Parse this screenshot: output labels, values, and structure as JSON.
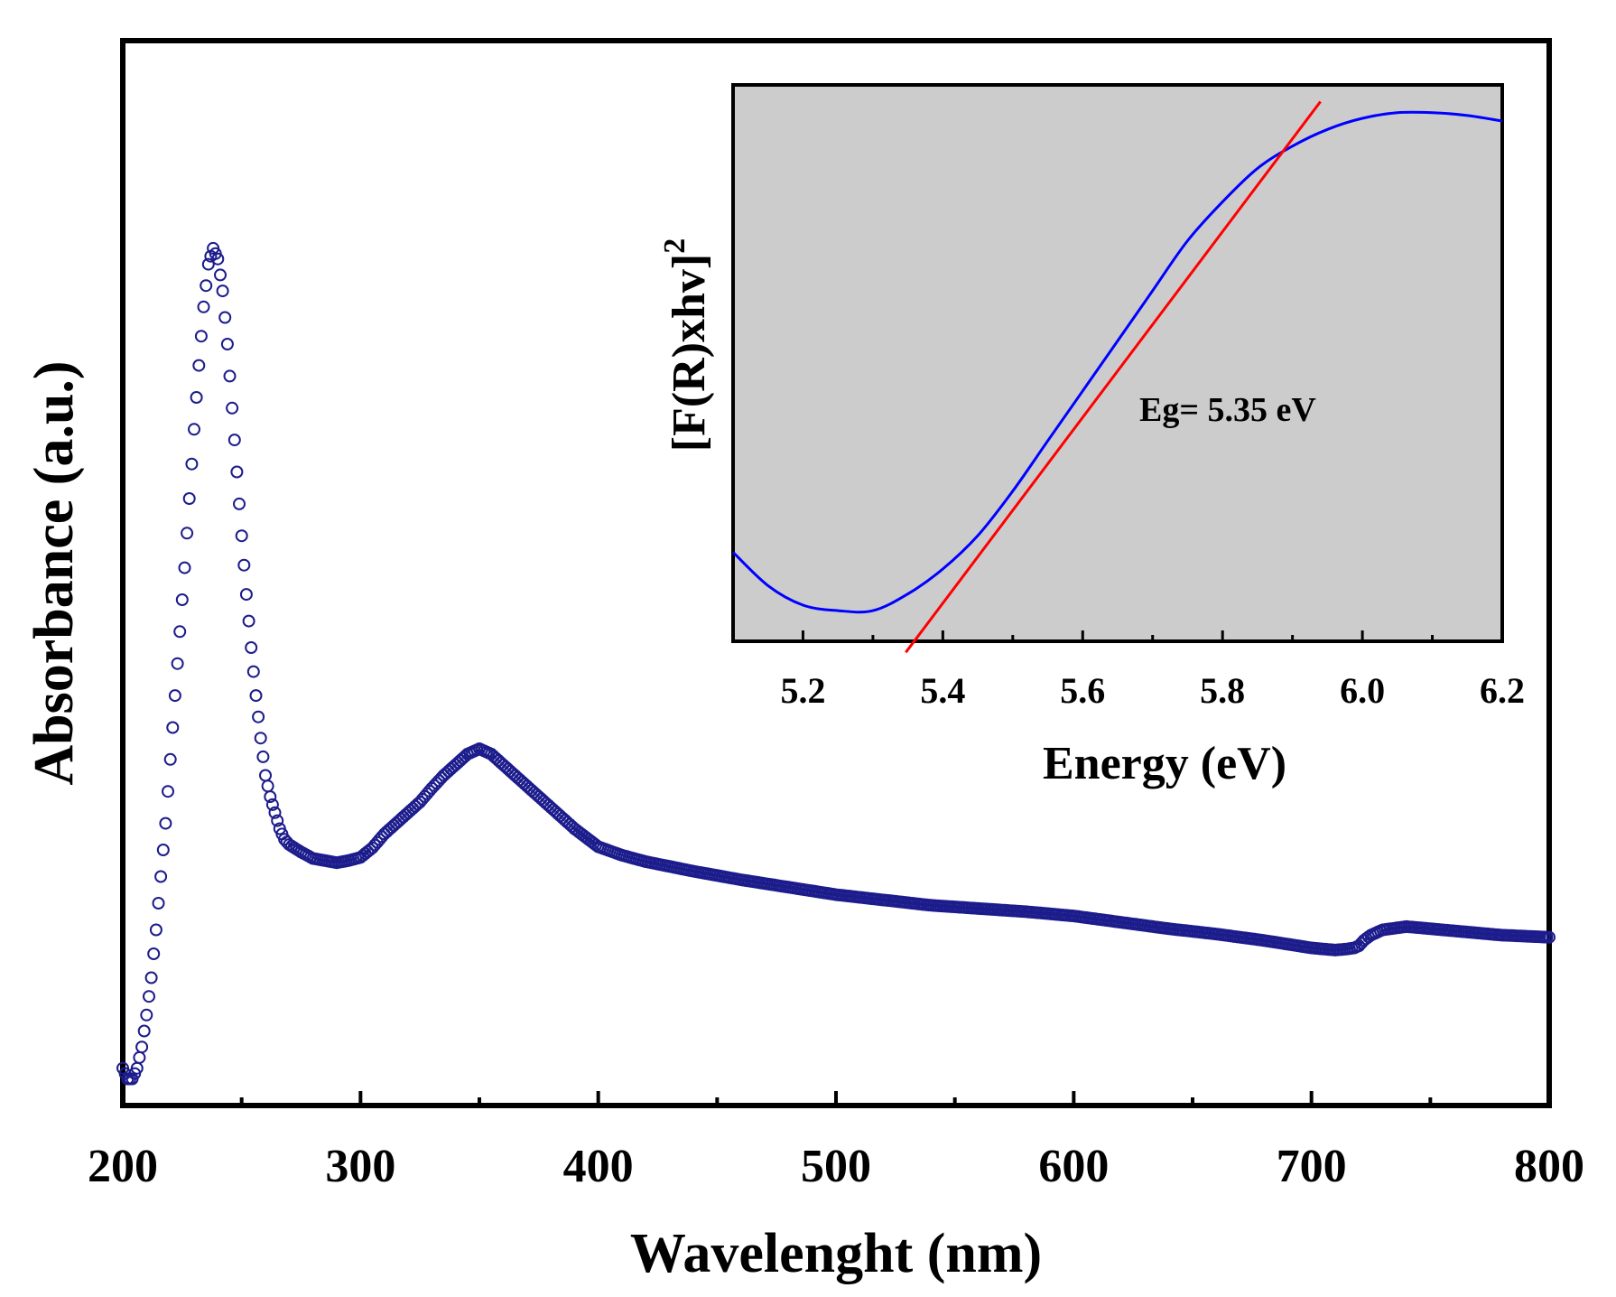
{
  "chart_data": [
    {
      "id": "main",
      "type": "scatter",
      "title": "",
      "xlabel": "Wavelenght (nm)",
      "ylabel": "Absorbance (a.u.)",
      "xlim": [
        200,
        800
      ],
      "ylim": [
        0,
        100
      ],
      "x_ticks": [
        200,
        300,
        400,
        500,
        600,
        700,
        800
      ],
      "x_tick_labels": [
        "200",
        "300",
        "400",
        "500",
        "600",
        "700",
        "800"
      ],
      "y_tick_labels": [],
      "marker": "open-circle",
      "colors": {
        "series": "#1c1c8c",
        "frame": "#000000"
      },
      "series": [
        {
          "name": "Absorbance",
          "x": [
            200,
            202,
            204,
            206,
            208,
            210,
            212,
            214,
            216,
            218,
            220,
            222,
            224,
            226,
            228,
            230,
            232,
            234,
            236,
            238,
            240,
            242,
            244,
            246,
            248,
            250,
            252,
            254,
            256,
            258,
            260,
            262,
            264,
            266,
            268,
            270,
            275,
            280,
            285,
            290,
            295,
            300,
            305,
            310,
            315,
            320,
            325,
            330,
            335,
            340,
            345,
            350,
            355,
            360,
            365,
            370,
            380,
            390,
            400,
            410,
            420,
            440,
            460,
            480,
            500,
            520,
            540,
            560,
            580,
            600,
            620,
            640,
            660,
            680,
            700,
            710,
            715,
            718,
            720,
            722,
            725,
            730,
            740,
            760,
            780,
            800
          ],
          "y": [
            3.5,
            2.5,
            2.5,
            3.5,
            5.5,
            8.5,
            12,
            16.5,
            21.5,
            26.5,
            32.5,
            38.5,
            44.5,
            50.5,
            57,
            63.5,
            69.5,
            75,
            79,
            80.5,
            79.5,
            76.5,
            71.5,
            65.5,
            59.5,
            53.5,
            48,
            43,
            38.5,
            34.5,
            31,
            29,
            27.5,
            26,
            25,
            24.5,
            23.8,
            23.2,
            23,
            22.8,
            23,
            23.3,
            24.2,
            25.5,
            26.5,
            27.5,
            28.5,
            29.8,
            31,
            32,
            33,
            33.5,
            33,
            32,
            31,
            30,
            28,
            26,
            24.3,
            23.5,
            22.9,
            22,
            21.2,
            20.5,
            19.8,
            19.3,
            18.8,
            18.5,
            18.2,
            17.8,
            17.2,
            16.6,
            16.1,
            15.5,
            14.8,
            14.6,
            14.7,
            14.8,
            15,
            15.5,
            16,
            16.5,
            16.8,
            16.4,
            16,
            15.8
          ]
        }
      ]
    },
    {
      "id": "inset",
      "type": "line",
      "title": "",
      "xlabel": "Energy (eV)",
      "ylabel": "[F(R)xhv]",
      "ylabel_superscript": "2",
      "xlim": [
        5.1,
        6.2
      ],
      "ylim": [
        0,
        1
      ],
      "x_ticks": [
        5.2,
        5.4,
        5.6,
        5.8,
        6.0,
        6.2
      ],
      "x_tick_labels": [
        "5.2",
        "5.4",
        "5.6",
        "5.8",
        "6.0",
        "6.2"
      ],
      "y_tick_labels": [],
      "background": "#cccccc",
      "annotation": "Eg= 5.35 eV",
      "colors": {
        "curve": "#0000ff",
        "fit": "#ff0000",
        "frame": "#000000"
      },
      "series": [
        {
          "name": "[F(R)xhv]^2",
          "x": [
            5.1,
            5.15,
            5.2,
            5.25,
            5.3,
            5.35,
            5.4,
            5.45,
            5.5,
            5.55,
            5.6,
            5.65,
            5.7,
            5.75,
            5.8,
            5.85,
            5.9,
            5.95,
            6.0,
            6.05,
            6.1,
            6.15,
            6.2
          ],
          "y": [
            0.16,
            0.1,
            0.065,
            0.055,
            0.055,
            0.085,
            0.13,
            0.19,
            0.27,
            0.36,
            0.45,
            0.54,
            0.63,
            0.72,
            0.79,
            0.85,
            0.89,
            0.92,
            0.94,
            0.95,
            0.95,
            0.945,
            0.935
          ]
        },
        {
          "name": "Linear fit",
          "x": [
            5.347,
            5.94
          ],
          "y": [
            -0.02,
            0.97
          ]
        }
      ]
    }
  ]
}
